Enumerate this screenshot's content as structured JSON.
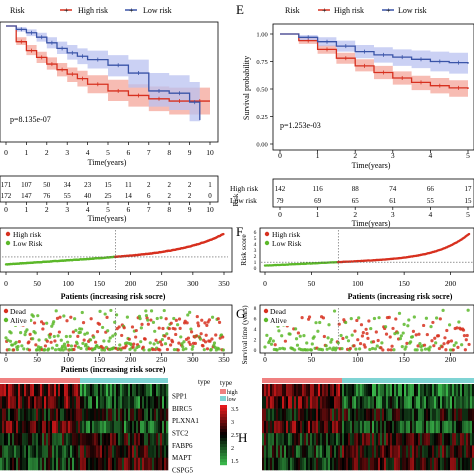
{
  "panel_E": {
    "letter": "E",
    "legend_title": "Risk",
    "legend_high": "High risk",
    "legend_low": "Low risk",
    "ylabel": "Survival probability",
    "pvalue": "p=1.253e-03",
    "xlabel": "Time(years)",
    "table_header": "Risk",
    "xlabel_table": "Time(years)",
    "row_high_label": "High risk",
    "row_low_label": "Low risk"
  },
  "panel_left_km": {
    "legend_title": "Risk",
    "legend_high": "High risk",
    "legend_low": "Low risk",
    "pvalue": "p=8.135e-07",
    "xlabel": "Time(years)",
    "xlabel_table": "Time(years)"
  },
  "panel_F": {
    "letter": "F",
    "legend_high": "High risk",
    "legend_low": "Low Risk",
    "ylabel": "Risk score",
    "xlabel": "Patients (increasing risk socre)"
  },
  "panel_left_riskscore": {
    "legend_high": "High risk",
    "legend_low": "Low Risk",
    "xlabel": "Patients (increasing risk socre)"
  },
  "panel_G": {
    "letter": "G",
    "legend_dead": "Dead",
    "legend_alive": "Alive",
    "ylabel": "Survival time (years)"
  },
  "panel_left_status": {
    "legend_dead": "Dead",
    "legend_alive": "Alive",
    "xlabel": "Patients (increasing risk socre)"
  },
  "panel_H": {
    "letter": "H",
    "genes": [
      "SPP1",
      "BIRC5",
      "PLXNA1",
      "STC2",
      "FABP6",
      "MAPT",
      "CSPG5"
    ],
    "type_label": "type",
    "legend_title": "type",
    "legend_high": "high",
    "legend_low": "low",
    "scale_ticks": [
      "3.5",
      "3",
      "2.5",
      "2",
      "1.5"
    ]
  },
  "colors": {
    "high": "#d7301f",
    "low": "#3a54a8",
    "high_band": "#f4a69a",
    "low_band": "#b9c1f0",
    "green": "#5cb82a",
    "heat_low": "#39b54a",
    "heat_high": "#e41a1c",
    "type_high": "#f08080",
    "type_low": "#7fd4d4"
  },
  "chart_data": [
    {
      "type": "line",
      "panel": "left-km",
      "xlabel": "Time(years)",
      "ylim": [
        0,
        1
      ],
      "xlim": [
        0,
        10
      ],
      "x_ticks": [
        0,
        1,
        2,
        3,
        4,
        5,
        6,
        7,
        8,
        9,
        10
      ],
      "annotation": "p=8.135e-07",
      "series": [
        {
          "name": "High risk",
          "x": [
            0,
            0.5,
            1,
            1.5,
            2,
            2.5,
            3,
            3.5,
            4,
            5,
            6,
            7,
            8,
            9,
            10
          ],
          "y": [
            1.0,
            0.86,
            0.78,
            0.72,
            0.66,
            0.61,
            0.57,
            0.53,
            0.48,
            0.42,
            0.38,
            0.35,
            0.33,
            0.33,
            0.33
          ],
          "ci_low": [
            1.0,
            0.83,
            0.74,
            0.67,
            0.61,
            0.55,
            0.5,
            0.46,
            0.4,
            0.33,
            0.28,
            0.24,
            0.21,
            0.21,
            0.21
          ],
          "ci_high": [
            1.0,
            0.9,
            0.83,
            0.77,
            0.72,
            0.67,
            0.63,
            0.6,
            0.56,
            0.52,
            0.48,
            0.46,
            0.45,
            0.45,
            0.45
          ]
        },
        {
          "name": "Low risk",
          "x": [
            0,
            0.5,
            1,
            1.5,
            2,
            2.5,
            3,
            3.5,
            4,
            5,
            6,
            7,
            8,
            9,
            9.5
          ],
          "y": [
            1.0,
            0.97,
            0.94,
            0.9,
            0.85,
            0.8,
            0.76,
            0.73,
            0.7,
            0.65,
            0.58,
            0.42,
            0.4,
            0.32,
            0.16
          ],
          "ci_low": [
            1.0,
            0.95,
            0.91,
            0.86,
            0.8,
            0.75,
            0.7,
            0.66,
            0.62,
            0.55,
            0.45,
            0.28,
            0.25,
            0.15,
            0.05
          ],
          "ci_high": [
            1.0,
            0.99,
            0.97,
            0.94,
            0.9,
            0.86,
            0.83,
            0.8,
            0.78,
            0.74,
            0.7,
            0.58,
            0.56,
            0.5,
            0.45
          ]
        }
      ],
      "risk_table": {
        "times": [
          0,
          1,
          2,
          3,
          4,
          5,
          6,
          7,
          8,
          9,
          10
        ],
        "High risk": [
          "171",
          "107",
          "50",
          "34",
          "23",
          "15",
          "11",
          "2",
          "2",
          "2",
          "1"
        ],
        "Low risk": [
          "172",
          "147",
          "76",
          "55",
          "40",
          "25",
          "14",
          "6",
          "2",
          "2",
          "0"
        ]
      }
    },
    {
      "type": "line",
      "panel": "E",
      "xlabel": "Time(years)",
      "ylabel": "Survival probability",
      "ylim": [
        0,
        1
      ],
      "xlim": [
        0,
        5
      ],
      "x_ticks": [
        0,
        1,
        2,
        3,
        4,
        5
      ],
      "y_ticks": [
        0,
        0.25,
        0.5,
        0.75,
        1.0
      ],
      "annotation": "p=1.253e-03",
      "series": [
        {
          "name": "High risk",
          "x": [
            0,
            0.5,
            1,
            1.5,
            2,
            2.5,
            3,
            3.5,
            4,
            4.5,
            5
          ],
          "y": [
            1.0,
            0.94,
            0.86,
            0.78,
            0.71,
            0.65,
            0.6,
            0.56,
            0.53,
            0.51,
            0.5
          ],
          "ci_low": [
            1.0,
            0.91,
            0.82,
            0.73,
            0.66,
            0.59,
            0.54,
            0.49,
            0.46,
            0.43,
            0.42
          ],
          "ci_high": [
            1.0,
            0.97,
            0.9,
            0.83,
            0.77,
            0.71,
            0.66,
            0.62,
            0.6,
            0.58,
            0.57
          ]
        },
        {
          "name": "Low risk",
          "x": [
            0,
            0.5,
            1,
            1.5,
            2,
            2.5,
            3,
            3.5,
            4,
            4.5,
            5
          ],
          "y": [
            1.0,
            0.97,
            0.93,
            0.89,
            0.84,
            0.81,
            0.79,
            0.77,
            0.75,
            0.74,
            0.73
          ],
          "ci_low": [
            1.0,
            0.94,
            0.89,
            0.84,
            0.78,
            0.74,
            0.71,
            0.69,
            0.66,
            0.64,
            0.63
          ],
          "ci_high": [
            1.0,
            0.99,
            0.97,
            0.94,
            0.9,
            0.88,
            0.86,
            0.85,
            0.84,
            0.83,
            0.82
          ]
        }
      ],
      "risk_table": {
        "times": [
          0,
          1,
          2,
          3,
          4,
          5
        ],
        "High risk": [
          "142",
          "116",
          "88",
          "74",
          "66",
          "17"
        ],
        "Low risk": [
          "79",
          "69",
          "65",
          "61",
          "55",
          "15"
        ]
      }
    },
    {
      "type": "scatter",
      "panel": "left-riskscore",
      "xlabel": "Patients (increasing risk socre)",
      "xlim": [
        0,
        350
      ],
      "x_ticks": [
        0,
        50,
        100,
        150,
        200,
        250,
        300,
        350
      ],
      "series": [
        {
          "name": "Low Risk",
          "n": 172
        },
        {
          "name": "High risk",
          "n": 171
        }
      ],
      "cutoff_index": 172
    },
    {
      "type": "scatter",
      "panel": "F",
      "xlabel": "Patients (increasing risk socre)",
      "ylabel": "Risk score",
      "ylim": [
        0,
        6
      ],
      "y_ticks": [
        0,
        1,
        2,
        3,
        4,
        5,
        6
      ],
      "x_ticks": [
        0,
        50,
        100,
        150,
        200
      ],
      "series": [
        {
          "name": "Low Risk",
          "n": 79
        },
        {
          "name": "High risk",
          "n": 142
        }
      ],
      "cutoff_index": 79
    },
    {
      "type": "scatter",
      "panel": "left-status",
      "xlabel": "Patients (increasing risk socre)",
      "x_ticks": [
        0,
        50,
        100,
        150,
        200,
        250,
        300,
        350
      ],
      "series": [
        {
          "name": "Dead"
        },
        {
          "name": "Alive"
        }
      ]
    },
    {
      "type": "scatter",
      "panel": "G",
      "ylabel": "Survival time (years)",
      "x_ticks": [
        0,
        50,
        100,
        150,
        200
      ],
      "y_ticks": [
        0,
        2,
        4,
        6,
        8
      ],
      "series": [
        {
          "name": "Dead"
        },
        {
          "name": "Alive"
        }
      ]
    },
    {
      "type": "heatmap",
      "panel": "H",
      "rows": [
        "SPP1",
        "BIRC5",
        "PLXNA1",
        "STC2",
        "FABP6",
        "MAPT",
        "CSPG5"
      ],
      "color_scale": [
        1.5,
        3.5
      ],
      "groups": [
        "high",
        "low"
      ]
    }
  ]
}
